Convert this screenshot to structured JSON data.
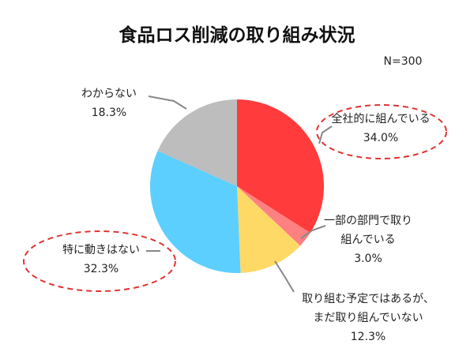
{
  "chart_data": {
    "type": "pie",
    "title": "食品ロス削減の取り組み状況",
    "note": "N=300",
    "start_angle_deg": 0,
    "direction": "clockwise",
    "slices": [
      {
        "label_lines": [
          "全社的に組んでいる"
        ],
        "value_text": "34.0%",
        "value": 34.0,
        "color": "#ff3b3b",
        "highlight": true
      },
      {
        "label_lines": [
          "一部の部門で取り",
          "組んでいる"
        ],
        "value_text": "3.0%",
        "value": 3.0,
        "color": "#ff8080",
        "highlight": false
      },
      {
        "label_lines": [
          "取り組む予定ではあるが、",
          "まだ取り組んでいない"
        ],
        "value_text": "12.3%",
        "value": 12.3,
        "color": "#ffd966",
        "highlight": false
      },
      {
        "label_lines": [
          "特に動きはない"
        ],
        "value_text": "32.3%",
        "value": 32.3,
        "color": "#5ccfff",
        "highlight": true
      },
      {
        "label_lines": [
          "わからない"
        ],
        "value_text": "18.3%",
        "value": 18.3,
        "color": "#bdbdbd",
        "highlight": false
      }
    ]
  }
}
